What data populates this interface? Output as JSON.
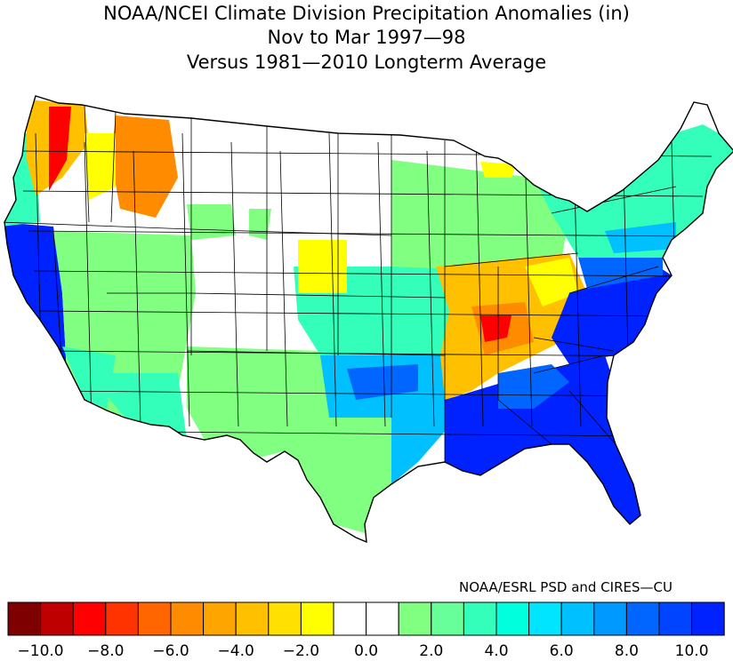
{
  "title": {
    "line1": "NOAA/NCEI Climate Division Precipitation Anomalies (in)",
    "line2": "Nov to Mar 1997—98",
    "line3": "Versus 1981—2010 Longterm Average"
  },
  "credit": "NOAA/ESRL PSD and CIRES—CU",
  "legend": {
    "units": "in",
    "colors": [
      "#7f0000",
      "#bf0000",
      "#ff0000",
      "#ff3300",
      "#ff6600",
      "#ff8c00",
      "#ffa500",
      "#ffc000",
      "#ffe000",
      "#ffff00",
      "#ffffff",
      "#ffffff",
      "#80ff80",
      "#66ff99",
      "#33ffbb",
      "#00ffdd",
      "#00e5ff",
      "#00c0ff",
      "#0099ff",
      "#0066ff",
      "#0044ff",
      "#0022ff"
    ],
    "ticks": [
      {
        "label": "−10.0",
        "value": -10
      },
      {
        "label": "−8.0",
        "value": -8
      },
      {
        "label": "−6.0",
        "value": -6
      },
      {
        "label": "−4.0",
        "value": -4
      },
      {
        "label": "−2.0",
        "value": -2
      },
      {
        "label": "0.0",
        "value": 0
      },
      {
        "label": "2.0",
        "value": 2
      },
      {
        "label": "4.0",
        "value": 4
      },
      {
        "label": "6.0",
        "value": 6
      },
      {
        "label": "8.0",
        "value": 8
      },
      {
        "label": "10.0",
        "value": 10
      }
    ]
  },
  "map": {
    "region": "Contiguous United States climate divisions",
    "anomaly_categories": {
      "strong_wet": "#0022ff",
      "wet": "#0066ff",
      "moderate_wet": "#00c0ff",
      "light_wet": "#33ffbb",
      "slight_wet": "#80ff80",
      "near_normal": "#ffffff",
      "slight_dry": "#ffff00",
      "moderate_dry": "#ffc000",
      "dry": "#ff8c00",
      "strong_dry": "#ff0000"
    }
  }
}
